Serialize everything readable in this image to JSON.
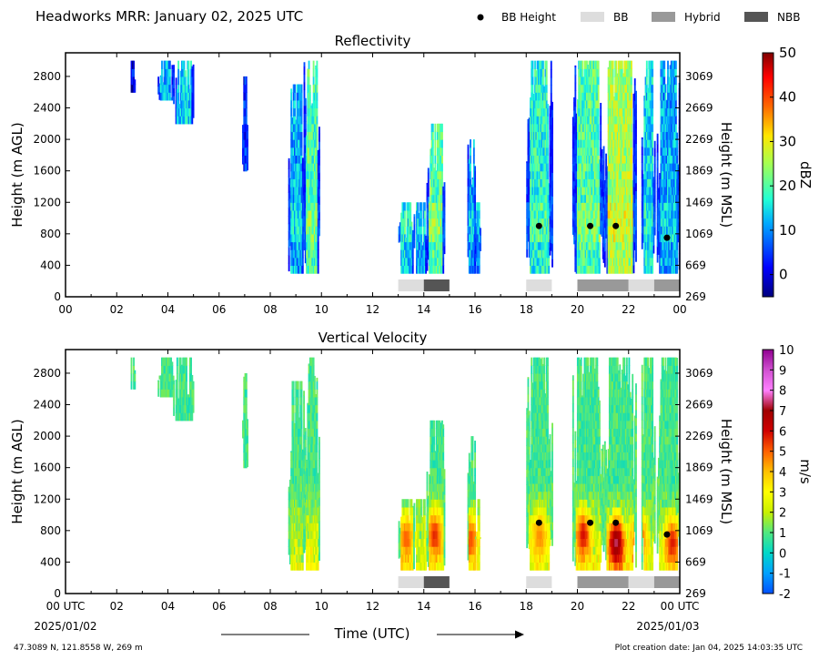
{
  "header": {
    "title": "Headworks MRR:  January 02, 2025 UTC",
    "legend": [
      {
        "label": "BB Height",
        "kind": "dot",
        "color": "#000000"
      },
      {
        "label": "BB",
        "kind": "swatch",
        "color": "#dddddd"
      },
      {
        "label": "Hybrid",
        "kind": "swatch",
        "color": "#999999"
      },
      {
        "label": "NBB",
        "kind": "swatch",
        "color": "#555555"
      }
    ]
  },
  "chart_data": [
    {
      "type": "heatmap",
      "title": "Reflectivity",
      "ylabel": "Height (m AGL)",
      "ylabel_right": "Height (m MSL)",
      "xlim": [
        0,
        24
      ],
      "ylim": [
        0,
        3100
      ],
      "x_ticks": [
        "00",
        "02",
        "04",
        "06",
        "08",
        "10",
        "12",
        "14",
        "16",
        "18",
        "20",
        "22",
        "00"
      ],
      "y_ticks": [
        0,
        400,
        800,
        1200,
        1600,
        2000,
        2400,
        2800
      ],
      "y_ticks_right": [
        269,
        669,
        1069,
        1469,
        1869,
        2269,
        2669,
        3069
      ],
      "colorbar": {
        "label": "dBZ",
        "min": -5,
        "max": 50,
        "ticks": [
          0,
          10,
          20,
          30,
          40,
          50
        ]
      },
      "bb_height_points": [
        {
          "x": 18.5,
          "y": 900
        },
        {
          "x": 20.5,
          "y": 900
        },
        {
          "x": 21.5,
          "y": 900
        },
        {
          "x": 23.5,
          "y": 750
        }
      ],
      "bb_type_bars": [
        {
          "start": 13.0,
          "end": 14.0,
          "type": "BB"
        },
        {
          "start": 14.0,
          "end": 15.0,
          "type": "NBB"
        },
        {
          "start": 18.0,
          "end": 19.0,
          "type": "BB"
        },
        {
          "start": 20.0,
          "end": 22.0,
          "type": "Hybrid"
        },
        {
          "start": 22.0,
          "end": 23.0,
          "type": "BB"
        },
        {
          "start": 23.0,
          "end": 24.0,
          "type": "Hybrid"
        }
      ]
    },
    {
      "type": "heatmap",
      "title": "Vertical Velocity",
      "ylabel": "Height (m AGL)",
      "ylabel_right": "Height (m MSL)",
      "xlabel": "Time (UTC)",
      "xlim": [
        0,
        24
      ],
      "ylim": [
        0,
        3100
      ],
      "x_ticks": [
        "00 UTC",
        "02",
        "04",
        "06",
        "08",
        "10",
        "12",
        "14",
        "16",
        "18",
        "20",
        "22",
        "00 UTC"
      ],
      "x_subticks": {
        "first": "2025/01/02",
        "last": "2025/01/03"
      },
      "y_ticks": [
        0,
        400,
        800,
        1200,
        1600,
        2000,
        2400,
        2800
      ],
      "y_ticks_right": [
        269,
        669,
        1069,
        1469,
        1869,
        2269,
        2669,
        3069
      ],
      "colorbar": {
        "label": "m/s",
        "min": -2,
        "max": 10,
        "ticks": [
          -2,
          -1,
          0,
          1,
          2,
          3,
          4,
          5,
          6,
          7,
          8,
          9,
          10
        ]
      },
      "bb_height_points": [
        {
          "x": 18.5,
          "y": 900
        },
        {
          "x": 20.5,
          "y": 900
        },
        {
          "x": 21.5,
          "y": 900
        },
        {
          "x": 23.5,
          "y": 750
        }
      ],
      "bb_type_bars": [
        {
          "start": 13.0,
          "end": 14.0,
          "type": "BB"
        },
        {
          "start": 14.0,
          "end": 15.0,
          "type": "NBB"
        },
        {
          "start": 18.0,
          "end": 19.0,
          "type": "BB"
        },
        {
          "start": 20.0,
          "end": 22.0,
          "type": "Hybrid"
        },
        {
          "start": 22.0,
          "end": 23.0,
          "type": "BB"
        },
        {
          "start": 23.0,
          "end": 24.0,
          "type": "Hybrid"
        }
      ]
    }
  ],
  "precip_segments": [
    {
      "start": 2.5,
      "end": 2.7,
      "top": 3000,
      "bottom": 2600,
      "zlevel": 0.1
    },
    {
      "start": 3.6,
      "end": 4.2,
      "top": 3000,
      "bottom": 2500,
      "zlevel": 0.3
    },
    {
      "start": 4.2,
      "end": 5.0,
      "top": 3000,
      "bottom": 2200,
      "zlevel": 0.35
    },
    {
      "start": 6.9,
      "end": 7.1,
      "top": 2800,
      "bottom": 1600,
      "zlevel": 0.15
    },
    {
      "start": 8.7,
      "end": 9.3,
      "top": 2700,
      "bottom": 300,
      "zlevel": 0.3
    },
    {
      "start": 9.3,
      "end": 9.9,
      "top": 3000,
      "bottom": 300,
      "zlevel": 0.45
    },
    {
      "start": 13.0,
      "end": 13.6,
      "top": 1200,
      "bottom": 300,
      "zlevel": 0.35
    },
    {
      "start": 13.6,
      "end": 14.1,
      "top": 1200,
      "bottom": 300,
      "zlevel": 0.3
    },
    {
      "start": 14.1,
      "end": 14.8,
      "top": 2200,
      "bottom": 300,
      "zlevel": 0.45
    },
    {
      "start": 15.7,
      "end": 16.0,
      "top": 2000,
      "bottom": 300,
      "zlevel": 0.3
    },
    {
      "start": 16.0,
      "end": 16.2,
      "top": 1200,
      "bottom": 300,
      "zlevel": 0.25
    },
    {
      "start": 18.0,
      "end": 19.0,
      "top": 3000,
      "bottom": 300,
      "zlevel": 0.4
    },
    {
      "start": 19.8,
      "end": 21.0,
      "top": 3000,
      "bottom": 300,
      "zlevel": 0.45
    },
    {
      "start": 21.0,
      "end": 22.3,
      "top": 3000,
      "bottom": 300,
      "zlevel": 0.55
    },
    {
      "start": 22.5,
      "end": 23.0,
      "top": 3000,
      "bottom": 300,
      "zlevel": 0.35
    },
    {
      "start": 23.1,
      "end": 24.0,
      "top": 3000,
      "bottom": 300,
      "zlevel": 0.3
    }
  ],
  "vv_cores": [
    {
      "x": 13.3,
      "y": 650,
      "v": 5.5
    },
    {
      "x": 14.4,
      "y": 700,
      "v": 6.2
    },
    {
      "x": 15.8,
      "y": 650,
      "v": 5.8
    },
    {
      "x": 18.5,
      "y": 700,
      "v": 5.0
    },
    {
      "x": 20.2,
      "y": 700,
      "v": 6.5
    },
    {
      "x": 21.5,
      "y": 600,
      "v": 8.2
    },
    {
      "x": 22.4,
      "y": 650,
      "v": 6.0
    },
    {
      "x": 23.7,
      "y": 600,
      "v": 6.5
    }
  ],
  "footer": {
    "time_label": "Time (UTC)",
    "location": "47.3089 N, 121.8558 W, 269 m",
    "creation": "Plot creation date: Jan 04, 2025 14:03:35 UTC"
  }
}
